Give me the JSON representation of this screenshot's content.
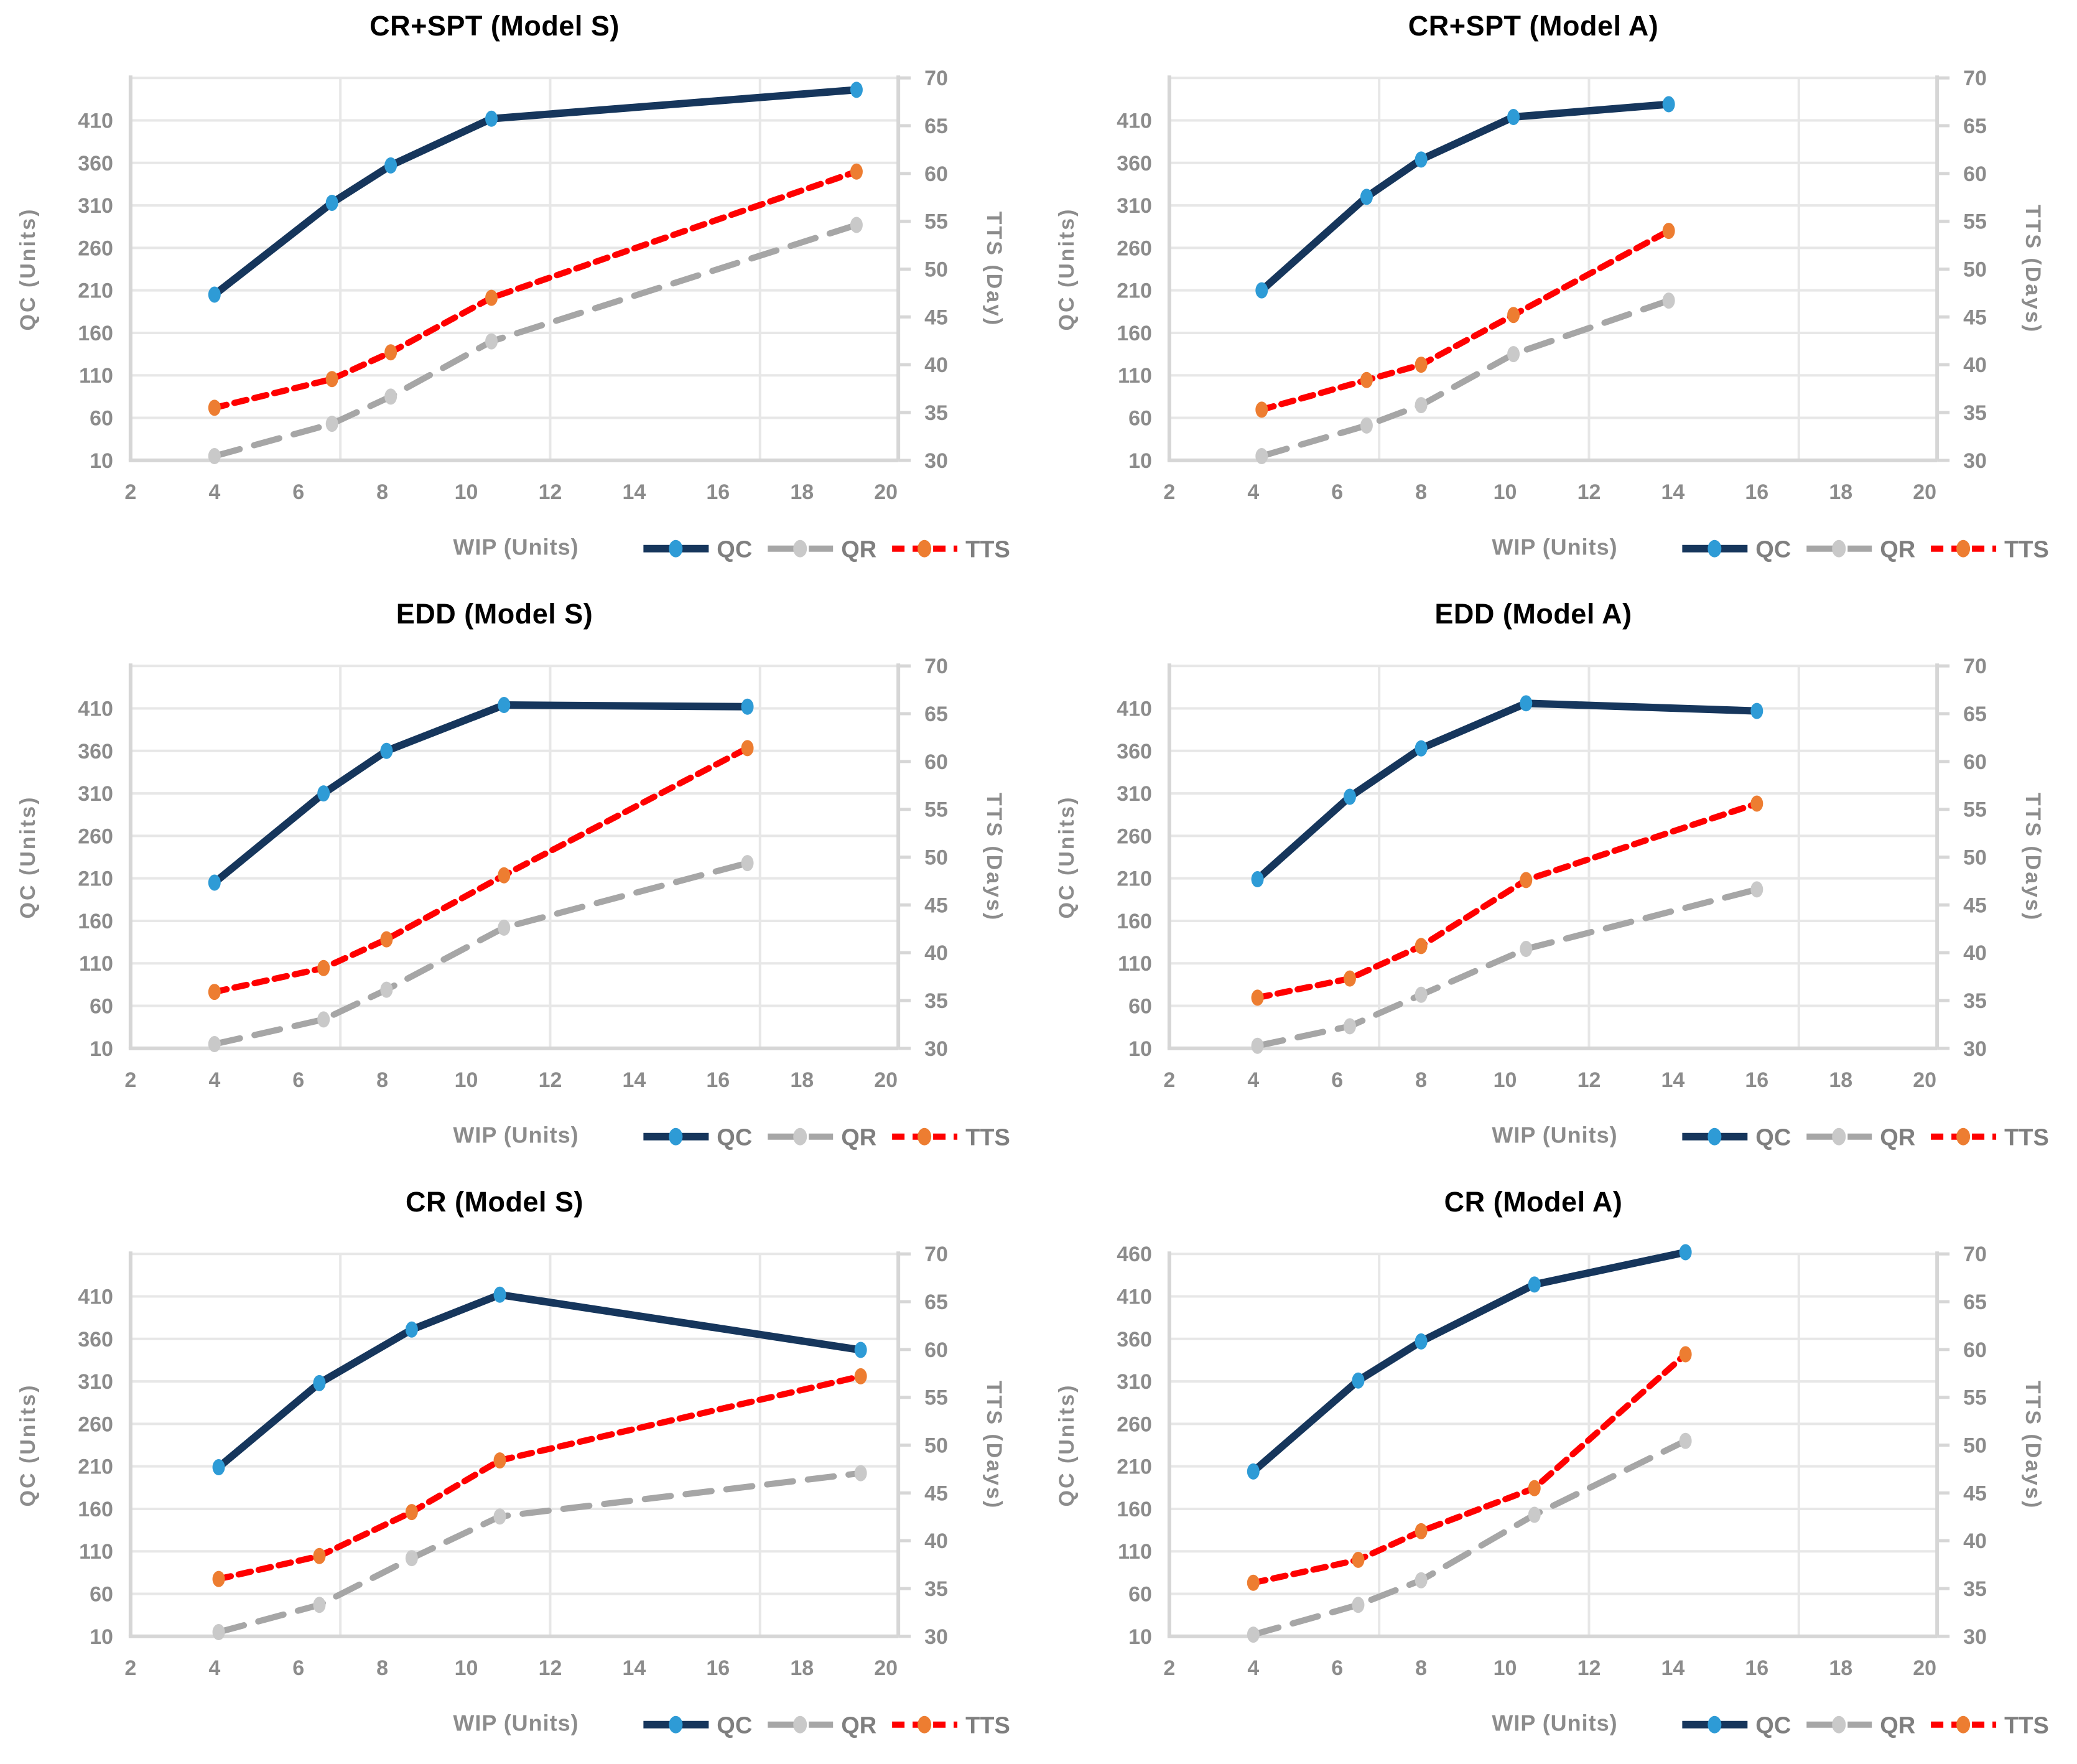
{
  "page": {
    "background": "#FFFFFF"
  },
  "colors": {
    "qc_line": "#16365C",
    "qc_marker": "#2E9BD6",
    "qr_line": "#A6A6A6",
    "qr_marker": "#C9C9C9",
    "tts_line": "#FF0000",
    "tts_marker": "#ED7D31",
    "gridline": "#E7E7E7",
    "axis_line": "#D6D6D6",
    "tick_label": "#8C8C8C",
    "axis_title": "#8C8C8C",
    "legend_label": "#7F7F7F",
    "title": "#000000"
  },
  "legend": [
    "QC",
    "QR",
    "TTS"
  ],
  "chart_data": [
    {
      "type": "line",
      "title": "CR+SPT (Model S)",
      "xlabel": "WIP (Units)",
      "ylabel_left": "QC (Units)",
      "ylabel_right": "TTS (Day)",
      "x_ticks": [
        2,
        4,
        6,
        8,
        10,
        12,
        14,
        16,
        18,
        20
      ],
      "left_ticks": [
        10,
        60,
        110,
        160,
        210,
        260,
        310,
        360,
        410
      ],
      "right_ticks": [
        30,
        35,
        40,
        45,
        50,
        55,
        60,
        65,
        70
      ],
      "left_range": [
        10,
        460
      ],
      "right_range": [
        30,
        70
      ],
      "x_range": [
        2,
        20.3
      ],
      "grid_x": [
        7,
        12,
        17
      ],
      "x": [
        4.0,
        6.8,
        8.2,
        10.6,
        19.3
      ],
      "series": [
        {
          "name": "QC",
          "axis": "left",
          "values": [
            205,
            313,
            357,
            412,
            446
          ]
        },
        {
          "name": "QR",
          "axis": "left",
          "values": [
            15,
            53,
            85,
            150,
            287
          ]
        },
        {
          "name": "TTS",
          "axis": "right",
          "values": [
            35.5,
            38.5,
            41.3,
            47.0,
            60.2
          ]
        }
      ]
    },
    {
      "type": "line",
      "title": "CR+SPT (Model A)",
      "xlabel": "WIP (Units)",
      "ylabel_left": "QC (Units)",
      "ylabel_right": "TTS (Days)",
      "x_ticks": [
        2,
        4,
        6,
        8,
        10,
        12,
        14,
        16,
        18,
        20
      ],
      "left_ticks": [
        10,
        60,
        110,
        160,
        210,
        260,
        310,
        360,
        410
      ],
      "right_ticks": [
        30,
        35,
        40,
        45,
        50,
        55,
        60,
        65,
        70
      ],
      "left_range": [
        10,
        460
      ],
      "right_range": [
        30,
        70
      ],
      "x_range": [
        2,
        20.3
      ],
      "grid_x": [
        7,
        12,
        17
      ],
      "x": [
        4.2,
        6.7,
        8.0,
        10.2,
        13.9
      ],
      "series": [
        {
          "name": "QC",
          "axis": "left",
          "values": [
            210,
            320,
            364,
            414,
            429
          ]
        },
        {
          "name": "QR",
          "axis": "left",
          "values": [
            15,
            51,
            75,
            135,
            198
          ]
        },
        {
          "name": "TTS",
          "axis": "right",
          "values": [
            35.3,
            38.4,
            40.0,
            45.2,
            54.0
          ]
        }
      ]
    },
    {
      "type": "line",
      "title": "EDD (Model S)",
      "xlabel": "WIP (Units)",
      "ylabel_left": "QC (Units)",
      "ylabel_right": "TTS (Days)",
      "x_ticks": [
        2,
        4,
        6,
        8,
        10,
        12,
        14,
        16,
        18,
        20
      ],
      "left_ticks": [
        10,
        60,
        110,
        160,
        210,
        260,
        310,
        360,
        410
      ],
      "right_ticks": [
        30,
        35,
        40,
        45,
        50,
        55,
        60,
        65,
        70
      ],
      "left_range": [
        10,
        460
      ],
      "right_range": [
        30,
        70
      ],
      "x_range": [
        2,
        20.3
      ],
      "grid_x": [
        7,
        12,
        17
      ],
      "x": [
        4.0,
        6.6,
        8.1,
        10.9,
        16.7
      ],
      "series": [
        {
          "name": "QC",
          "axis": "left",
          "values": [
            205,
            310,
            360,
            414,
            412
          ]
        },
        {
          "name": "QR",
          "axis": "left",
          "values": [
            15,
            44,
            79,
            152,
            228
          ]
        },
        {
          "name": "TTS",
          "axis": "right",
          "values": [
            35.9,
            38.4,
            41.4,
            48.1,
            61.4
          ]
        }
      ]
    },
    {
      "type": "line",
      "title": "EDD (Model A)",
      "xlabel": "WIP (Units)",
      "ylabel_left": "QC (Units)",
      "ylabel_right": "TTS (Days)",
      "x_ticks": [
        2,
        4,
        6,
        8,
        10,
        12,
        14,
        16,
        18,
        20
      ],
      "left_ticks": [
        10,
        60,
        110,
        160,
        210,
        260,
        310,
        360,
        410
      ],
      "right_ticks": [
        30,
        35,
        40,
        45,
        50,
        55,
        60,
        65,
        70
      ],
      "left_range": [
        10,
        460
      ],
      "right_range": [
        30,
        70
      ],
      "x_range": [
        2,
        20.3
      ],
      "grid_x": [
        7,
        12,
        17
      ],
      "x": [
        4.1,
        6.3,
        8.0,
        10.5,
        16.0
      ],
      "series": [
        {
          "name": "QC",
          "axis": "left",
          "values": [
            209,
            306,
            363,
            416,
            407
          ]
        },
        {
          "name": "QR",
          "axis": "left",
          "values": [
            13,
            36,
            73,
            127,
            197
          ]
        },
        {
          "name": "TTS",
          "axis": "right",
          "values": [
            35.3,
            37.3,
            40.7,
            47.6,
            55.6
          ]
        }
      ]
    },
    {
      "type": "line",
      "title": "CR (Model S)",
      "xlabel": "WIP (Units)",
      "ylabel_left": "QC (Units)",
      "ylabel_right": "TTS (Days)",
      "x_ticks": [
        2,
        4,
        6,
        8,
        10,
        12,
        14,
        16,
        18,
        20
      ],
      "left_ticks": [
        10,
        60,
        110,
        160,
        210,
        260,
        310,
        360,
        410
      ],
      "right_ticks": [
        30,
        35,
        40,
        45,
        50,
        55,
        60,
        65,
        70
      ],
      "left_range": [
        10,
        460
      ],
      "right_range": [
        30,
        70
      ],
      "x_range": [
        2,
        20.3
      ],
      "grid_x": [
        7,
        12,
        17
      ],
      "x": [
        4.1,
        6.5,
        8.7,
        10.8,
        19.4
      ],
      "series": [
        {
          "name": "QC",
          "axis": "left",
          "values": [
            209,
            308,
            371,
            412,
            347
          ]
        },
        {
          "name": "QR",
          "axis": "left",
          "values": [
            15,
            47,
            102,
            151,
            202
          ]
        },
        {
          "name": "TTS",
          "axis": "right",
          "values": [
            36.0,
            38.4,
            43.0,
            48.4,
            57.2
          ]
        }
      ]
    },
    {
      "type": "line",
      "title": "CR (Model A)",
      "xlabel": "WIP (Units)",
      "ylabel_left": "QC (Units)",
      "ylabel_right": "TTS (Days)",
      "x_ticks": [
        2,
        4,
        6,
        8,
        10,
        12,
        14,
        16,
        18,
        20
      ],
      "left_ticks": [
        10,
        60,
        110,
        160,
        210,
        260,
        310,
        360,
        410,
        460
      ],
      "right_ticks": [
        30,
        35,
        40,
        45,
        50,
        55,
        60,
        65,
        70
      ],
      "left_range": [
        10,
        460
      ],
      "right_range": [
        30,
        70
      ],
      "x_range": [
        2,
        20.3
      ],
      "grid_x": [
        7,
        12,
        17
      ],
      "x": [
        4.0,
        6.5,
        8.0,
        10.7,
        14.3
      ],
      "series": [
        {
          "name": "QC",
          "axis": "left",
          "values": [
            204,
            311,
            357,
            424,
            462
          ]
        },
        {
          "name": "QR",
          "axis": "left",
          "values": [
            12,
            47,
            76,
            153,
            240
          ]
        },
        {
          "name": "TTS",
          "axis": "right",
          "values": [
            35.6,
            38.0,
            41.0,
            45.5,
            59.5
          ]
        }
      ]
    }
  ]
}
